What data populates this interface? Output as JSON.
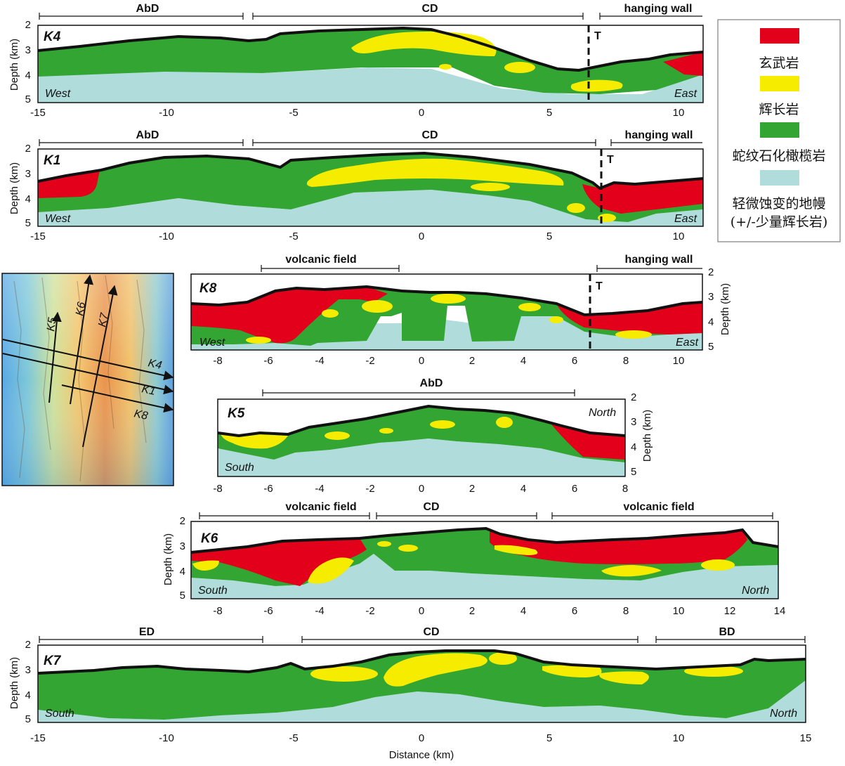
{
  "colors": {
    "basalt": "#e3001b",
    "gabbro": "#f5ec00",
    "serpentinite": "#33a532",
    "mantle": "#b0dcdc",
    "surface": "#111111"
  },
  "legend": {
    "items": [
      {
        "swatch": "basalt",
        "label": "玄武岩"
      },
      {
        "swatch": "gabbro",
        "label": "辉长岩"
      },
      {
        "swatch": "serpentinite",
        "label": "蛇纹石化橄榄岩"
      },
      {
        "swatch": "mantle",
        "label": "轻微蚀变的地幔",
        "label2": "(+/-少量辉长岩)"
      }
    ]
  },
  "axis": {
    "depth_label": "Depth (km)",
    "distance_label": "Distance (km)",
    "fault_label": "T"
  },
  "panels": [
    {
      "id": "K4",
      "name": "K4",
      "left_dir": "West",
      "right_dir": "East",
      "x_ticks": [
        "-15",
        "-10",
        "-5",
        "0",
        "5",
        "10"
      ],
      "depth_ticks": [
        "2",
        "3",
        "4",
        "5"
      ],
      "zones": [
        {
          "label": "AbD"
        },
        {
          "label": "CD"
        },
        {
          "label": "hanging wall"
        }
      ]
    },
    {
      "id": "K1",
      "name": "K1",
      "left_dir": "West",
      "right_dir": "East",
      "x_ticks": [
        "-15",
        "-10",
        "-5",
        "0",
        "5",
        "10"
      ],
      "depth_ticks": [
        "2",
        "3",
        "4",
        "5"
      ],
      "zones": [
        {
          "label": "AbD"
        },
        {
          "label": "CD"
        },
        {
          "label": "hanging wall"
        }
      ]
    },
    {
      "id": "K8",
      "name": "K8",
      "left_dir": "West",
      "right_dir": "East",
      "x_ticks": [
        "-8",
        "-6",
        "-4",
        "-2",
        "0",
        "2",
        "4",
        "6",
        "8",
        "10"
      ],
      "depth_ticks": [
        "2",
        "3",
        "4",
        "5"
      ],
      "zones": [
        {
          "label": "volcanic field"
        },
        {
          "label": "hanging wall"
        }
      ]
    },
    {
      "id": "K5",
      "name": "K5",
      "left_dir": "South",
      "right_dir": "North",
      "x_ticks": [
        "-8",
        "-6",
        "-4",
        "-2",
        "0",
        "2",
        "4",
        "6",
        "8"
      ],
      "depth_ticks": [
        "2",
        "3",
        "4",
        "5"
      ],
      "zones": [
        {
          "label": "AbD"
        }
      ]
    },
    {
      "id": "K6",
      "name": "K6",
      "left_dir": "South",
      "right_dir": "North",
      "x_ticks": [
        "-8",
        "-6",
        "-4",
        "-2",
        "0",
        "2",
        "4",
        "6",
        "8",
        "10",
        "12",
        "14"
      ],
      "depth_ticks": [
        "2",
        "3",
        "4",
        "5"
      ],
      "zones": [
        {
          "label": "volcanic field"
        },
        {
          "label": "CD"
        },
        {
          "label": "volcanic field"
        }
      ]
    },
    {
      "id": "K7",
      "name": "K7",
      "left_dir": "South",
      "right_dir": "North",
      "x_ticks": [
        "-15",
        "-10",
        "-5",
        "0",
        "5",
        "10",
        "15"
      ],
      "depth_ticks": [
        "2",
        "3",
        "4",
        "5"
      ],
      "zones": [
        {
          "label": "ED"
        },
        {
          "label": "CD"
        },
        {
          "label": "BD"
        }
      ]
    }
  ],
  "map": {
    "profile_labels": [
      "K4",
      "K1",
      "K8",
      "K5",
      "K6",
      "K7"
    ]
  }
}
